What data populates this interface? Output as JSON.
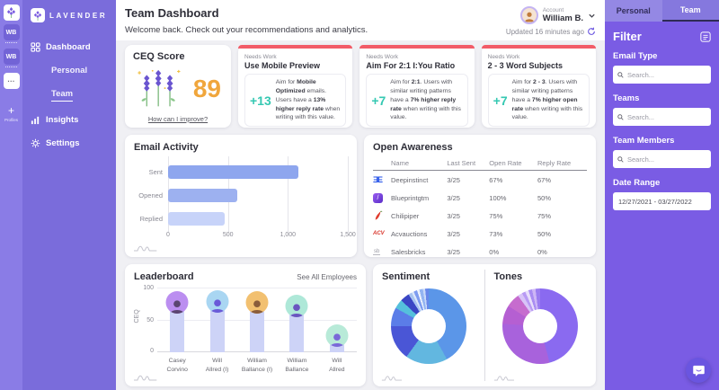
{
  "colors": {
    "accent_purple": "#7a5ce4",
    "card_top_red": "#f25c68",
    "delta_teal": "#35c8b2",
    "score_orange": "#f0a63c",
    "leaderboard_bar": "#cdd3f7"
  },
  "rail": {
    "badges": [
      "WB",
      "WB"
    ],
    "more": "...",
    "add": "+",
    "add_label": "Profiles"
  },
  "sidebar": {
    "brand": "LAVENDER",
    "items": [
      {
        "label": "Dashboard"
      },
      {
        "label": "Personal"
      },
      {
        "label": "Team"
      },
      {
        "label": "Insights"
      },
      {
        "label": "Settings"
      }
    ]
  },
  "tabs": {
    "personal": "Personal",
    "team": "Team"
  },
  "header": {
    "title": "Team Dashboard",
    "subtitle": "Welcome back. Check out your recommendations and analytics.",
    "account_label": "Account",
    "account_name": "William B.",
    "updated": "Updated 16 minutes ago"
  },
  "ceq": {
    "title": "CEQ Score",
    "score": "89",
    "link": "How can I improve?"
  },
  "recommendations": [
    {
      "tag": "Needs Work",
      "title": "Use Mobile Preview",
      "delta": "+13",
      "body": [
        {
          "t": "Aim for "
        },
        {
          "t": "Mobile Optimized",
          "b": 1
        },
        {
          "t": " emails. Users have a "
        },
        {
          "t": "13% higher reply rate",
          "b": 1
        },
        {
          "t": " when writing with this value."
        }
      ]
    },
    {
      "tag": "Needs Work",
      "title": "Aim For 2:1 I:You Ratio",
      "delta": "+7",
      "body": [
        {
          "t": "Aim for "
        },
        {
          "t": "2:1",
          "b": 1
        },
        {
          "t": ". Users with similar writing patterns have a "
        },
        {
          "t": "7% higher reply rate",
          "b": 1
        },
        {
          "t": " when writing with this value."
        }
      ]
    },
    {
      "tag": "Needs Work",
      "title": "2 - 3 Word Subjects",
      "delta": "+7",
      "body": [
        {
          "t": "Aim for "
        },
        {
          "t": "2 - 3",
          "b": 1
        },
        {
          "t": ". Users with similar writing patterns have a "
        },
        {
          "t": "7% higher open rate",
          "b": 1
        },
        {
          "t": " when writing with this value."
        }
      ]
    }
  ],
  "open_awareness": {
    "title": "Open Awareness",
    "columns": [
      "Name",
      "Last Sent",
      "Open Rate",
      "Reply Rate"
    ],
    "rows": [
      {
        "icon": "deepinstinct-logo",
        "name": "Deepinstinct",
        "last_sent": "3/25",
        "open_rate": "67%",
        "reply_rate": "67%"
      },
      {
        "icon": "blueprintgtm-logo",
        "name": "Blueprintgtm",
        "last_sent": "3/25",
        "open_rate": "100%",
        "reply_rate": "50%"
      },
      {
        "icon": "chilipiper-logo",
        "name": "Chilipiper",
        "last_sent": "3/25",
        "open_rate": "75%",
        "reply_rate": "75%"
      },
      {
        "icon": "acvauctions-logo",
        "name": "Acvauctions",
        "last_sent": "3/25",
        "open_rate": "73%",
        "reply_rate": "50%"
      },
      {
        "icon": "salesbricks-logo",
        "name": "Salesbricks",
        "last_sent": "3/25",
        "open_rate": "0%",
        "reply_rate": "0%"
      }
    ]
  },
  "leaderboard_card": {
    "link": "See All Employees"
  },
  "filter": {
    "title": "Filter",
    "sections": [
      {
        "label": "Email Type",
        "placeholder": "Search..."
      },
      {
        "label": "Teams",
        "placeholder": "Search..."
      },
      {
        "label": "Team Members",
        "placeholder": "Search..."
      }
    ],
    "date_label": "Date Range",
    "date_value": "12/27/2021 - 03/27/2022"
  },
  "chart_data": [
    {
      "id": "email_activity",
      "type": "bar",
      "orientation": "horizontal",
      "title": "Email Activity",
      "categories": [
        "Sent",
        "Opened",
        "Replied"
      ],
      "values": [
        1090,
        575,
        470
      ],
      "xlim": [
        0,
        1500
      ],
      "xticks": [
        "0",
        "500",
        "1,000",
        "1,500"
      ],
      "bar_colors": [
        "#8ea6ee",
        "#9db1f0",
        "#c7d3f9"
      ],
      "grid": "vertical"
    },
    {
      "id": "leaderboard",
      "type": "bar",
      "orientation": "vertical",
      "title": "Leaderboard",
      "ylabel": "CEQ",
      "categories": [
        "Casey Corvino",
        "Will Allred (I)",
        "William Ballance (I)",
        "William Ballance",
        "Will Allred"
      ],
      "names": [
        [
          "Casey",
          "Corvino"
        ],
        [
          "Will",
          "Allred (I)"
        ],
        [
          "William",
          "Ballance (I)"
        ],
        [
          "William",
          "Ballance"
        ],
        [
          "Will",
          "Allred"
        ]
      ],
      "values": [
        76,
        78,
        76,
        71,
        25
      ],
      "ylim": [
        0,
        100
      ],
      "yticks": [
        "0",
        "50",
        "100"
      ],
      "bar_color": "#cdd3f7",
      "avatars": [
        {
          "bg": "#bb8ef0",
          "fg": "#5a4470"
        },
        {
          "bg": "#a9d6f2",
          "fg": "#6a5ad8"
        },
        {
          "bg": "#f2c070",
          "fg": "#8a5c3a"
        },
        {
          "bg": "#aee8d8",
          "fg": "#6a55c0"
        },
        {
          "bg": "#b8ead8",
          "fg": "#7a68d8"
        }
      ]
    },
    {
      "id": "sentiment",
      "type": "pie",
      "title": "Sentiment",
      "donut": true,
      "slices": [
        {
          "v": 42,
          "c": "#5b96e8"
        },
        {
          "v": 18,
          "c": "#62b7e0"
        },
        {
          "v": 15,
          "c": "#4a56d6"
        },
        {
          "v": 8,
          "c": "#5b7de8"
        },
        {
          "v": 4,
          "c": "#55c0dc"
        },
        {
          "v": 4,
          "c": "#3a46c4"
        },
        {
          "v": 1.5,
          "c": "#a8c4f0"
        },
        {
          "v": 1,
          "c": "#dce8fa"
        },
        {
          "v": 1.5,
          "c": "#7d9cf0"
        },
        {
          "v": 1,
          "c": "#eef4fd"
        },
        {
          "v": 1.5,
          "c": "#93b4f2"
        },
        {
          "v": 1,
          "c": "#c8d9f8"
        },
        {
          "v": 1.5,
          "c": "#6888ea"
        }
      ]
    },
    {
      "id": "tones",
      "type": "pie",
      "title": "Tones",
      "donut": true,
      "slices": [
        {
          "v": 46,
          "c": "#8a6af0"
        },
        {
          "v": 30,
          "c": "#a862dc"
        },
        {
          "v": 8,
          "c": "#b55fd2"
        },
        {
          "v": 6,
          "c": "#c66cce"
        },
        {
          "v": 2,
          "c": "#d8c4f8"
        },
        {
          "v": 1.5,
          "c": "#b89af4"
        },
        {
          "v": 1.5,
          "c": "#e8defb"
        },
        {
          "v": 1.5,
          "c": "#a98cf2"
        },
        {
          "v": 1.5,
          "c": "#cdb6f6"
        },
        {
          "v": 2,
          "c": "#9a7cf0"
        }
      ]
    }
  ]
}
